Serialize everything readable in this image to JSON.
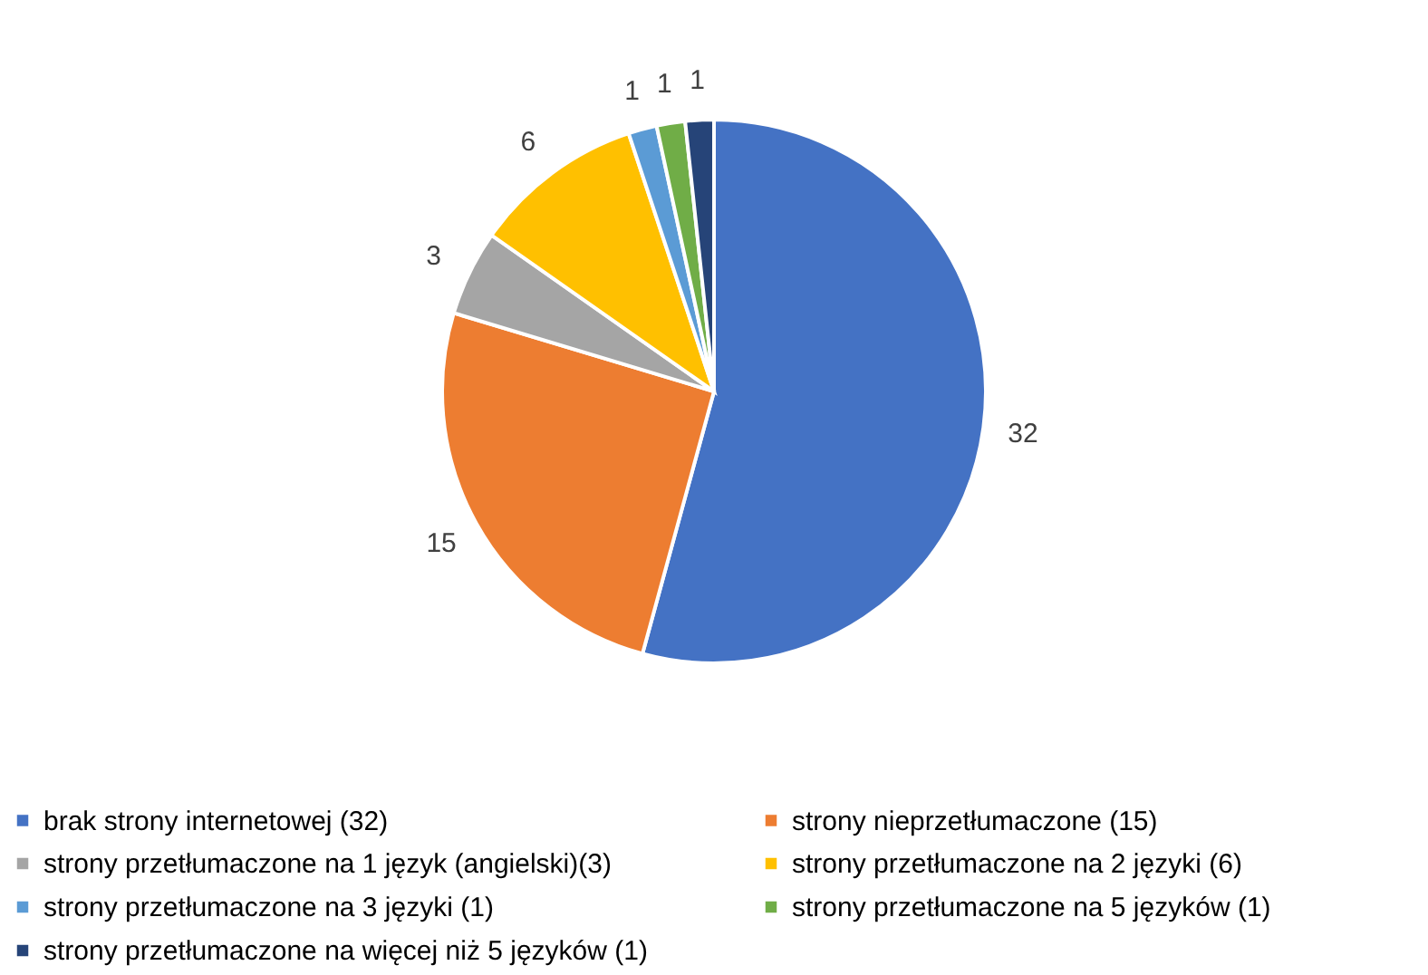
{
  "chart_data": {
    "type": "pie",
    "categories": [
      "brak strony internetowej (32)",
      "strony nieprzetłumaczone (15)",
      "strony przetłumaczone na 1 język (angielski)(3)",
      "strony przetłumaczone na 2 języki (6)",
      "strony przetłumaczone na 3 języki (1)",
      "strony przetłumaczone na 5 języków (1)",
      "strony przetłumaczone na więcej niż 5 języków (1)"
    ],
    "values": [
      32,
      15,
      3,
      6,
      1,
      1,
      1
    ],
    "colors": [
      "#4472c4",
      "#ed7d31",
      "#a5a5a5",
      "#ffc000",
      "#5b9bd5",
      "#70ad47",
      "#264478"
    ],
    "data_labels": true,
    "legend": "bottom"
  }
}
